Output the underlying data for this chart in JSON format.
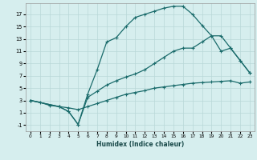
{
  "title": "",
  "xlabel": "Humidex (Indice chaleur)",
  "background_color": "#d6eeee",
  "grid_color": "#b8d8d8",
  "line_color": "#1a6b6b",
  "xlim": [
    -0.5,
    23.5
  ],
  "ylim": [
    -2.0,
    18.8
  ],
  "xticks": [
    0,
    1,
    2,
    3,
    4,
    5,
    6,
    7,
    8,
    9,
    10,
    11,
    12,
    13,
    14,
    15,
    16,
    17,
    18,
    19,
    20,
    21,
    22,
    23
  ],
  "yticks": [
    -1,
    1,
    3,
    5,
    7,
    9,
    11,
    13,
    15,
    17
  ],
  "line1_x": [
    0,
    1,
    2,
    3,
    4,
    5,
    6,
    7,
    8,
    9,
    10,
    11,
    12,
    13,
    14,
    15,
    16,
    17,
    18,
    19,
    20,
    21,
    22,
    23
  ],
  "line1_y": [
    3.0,
    2.7,
    2.2,
    2.0,
    1.8,
    1.5,
    2.0,
    2.5,
    3.0,
    3.5,
    4.0,
    4.3,
    4.6,
    5.0,
    5.2,
    5.4,
    5.6,
    5.8,
    5.9,
    6.0,
    6.1,
    6.2,
    5.8,
    6.0
  ],
  "line2_x": [
    0,
    3,
    4,
    5,
    6,
    7,
    8,
    9,
    10,
    11,
    12,
    13,
    14,
    15,
    16,
    17,
    18,
    19,
    20,
    21,
    22,
    23
  ],
  "line2_y": [
    3.0,
    2.0,
    1.2,
    -0.9,
    4.0,
    8.0,
    12.5,
    13.2,
    15.0,
    16.5,
    17.0,
    17.5,
    18.0,
    18.3,
    18.3,
    17.0,
    15.2,
    13.5,
    13.5,
    11.5,
    9.5,
    7.5
  ],
  "line3_x": [
    0,
    3,
    4,
    5,
    6,
    7,
    8,
    9,
    10,
    11,
    12,
    13,
    14,
    15,
    16,
    17,
    18,
    19,
    20,
    21,
    22,
    23
  ],
  "line3_y": [
    3.0,
    2.0,
    1.2,
    -0.9,
    3.5,
    4.5,
    5.5,
    6.2,
    6.8,
    7.3,
    8.0,
    9.0,
    10.0,
    11.0,
    11.5,
    11.5,
    12.5,
    13.5,
    11.0,
    11.5,
    9.5,
    7.5
  ]
}
